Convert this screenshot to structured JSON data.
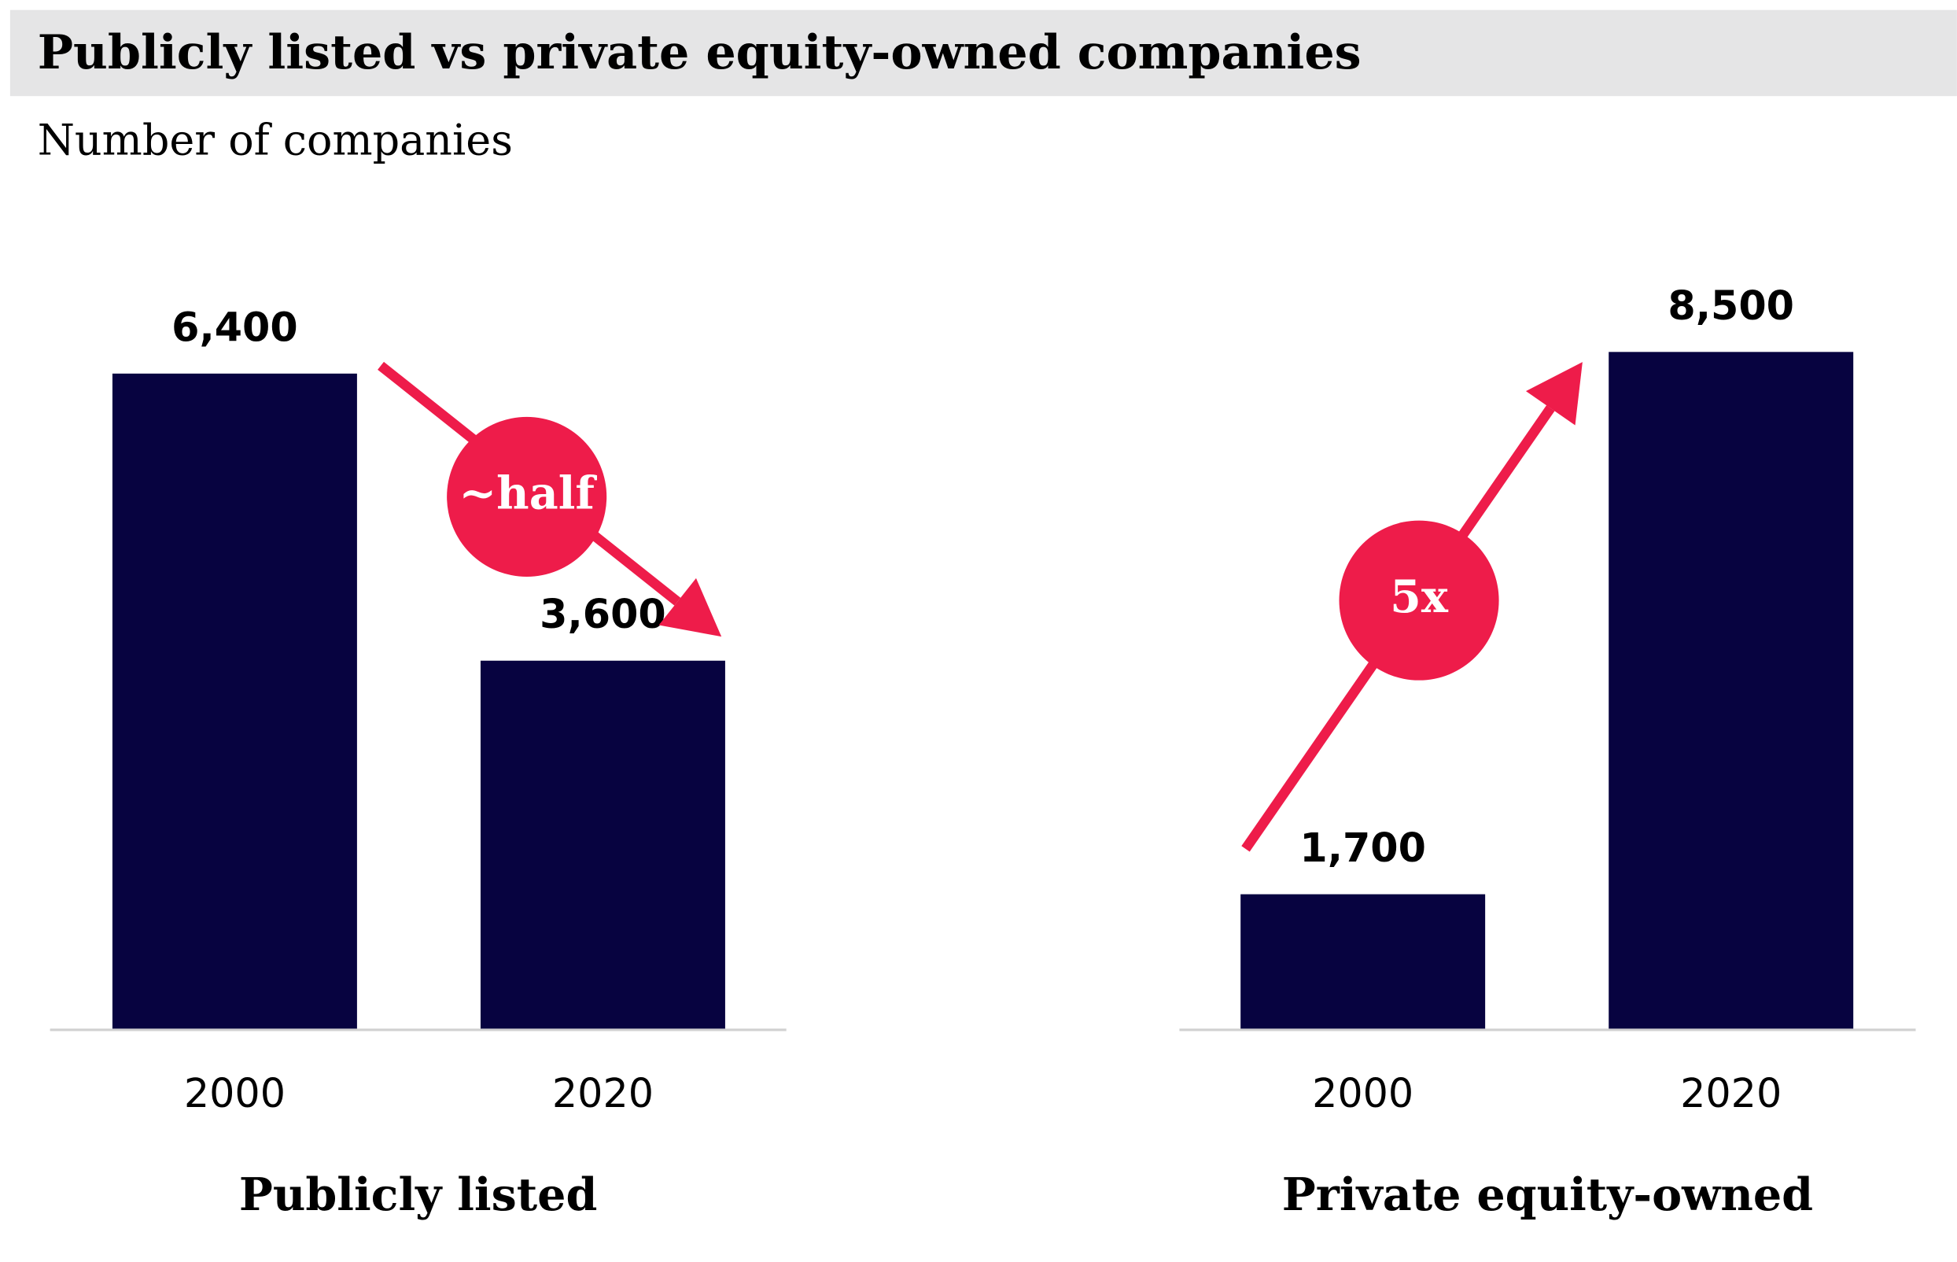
{
  "title": "Publicly listed vs private equity-owned companies",
  "subtitle": "Number of companies",
  "chart_data": [
    {
      "type": "bar",
      "title": "Publicly listed",
      "categories": [
        "2000",
        "2020"
      ],
      "values": [
        6400,
        3600
      ],
      "value_labels": [
        "6,400",
        "3,600"
      ],
      "color": "#070340",
      "ylim": [
        0,
        7000
      ],
      "annotation": "~half",
      "annotation_color": "#ee1c4a"
    },
    {
      "type": "bar",
      "title": "Private equity-owned",
      "categories": [
        "2000",
        "2020"
      ],
      "values": [
        1700,
        8500
      ],
      "value_labels": [
        "1,700",
        "8,500"
      ],
      "color": "#070340",
      "ylim": [
        0,
        9000
      ],
      "annotation": "5x",
      "annotation_color": "#ee1c4a"
    }
  ]
}
